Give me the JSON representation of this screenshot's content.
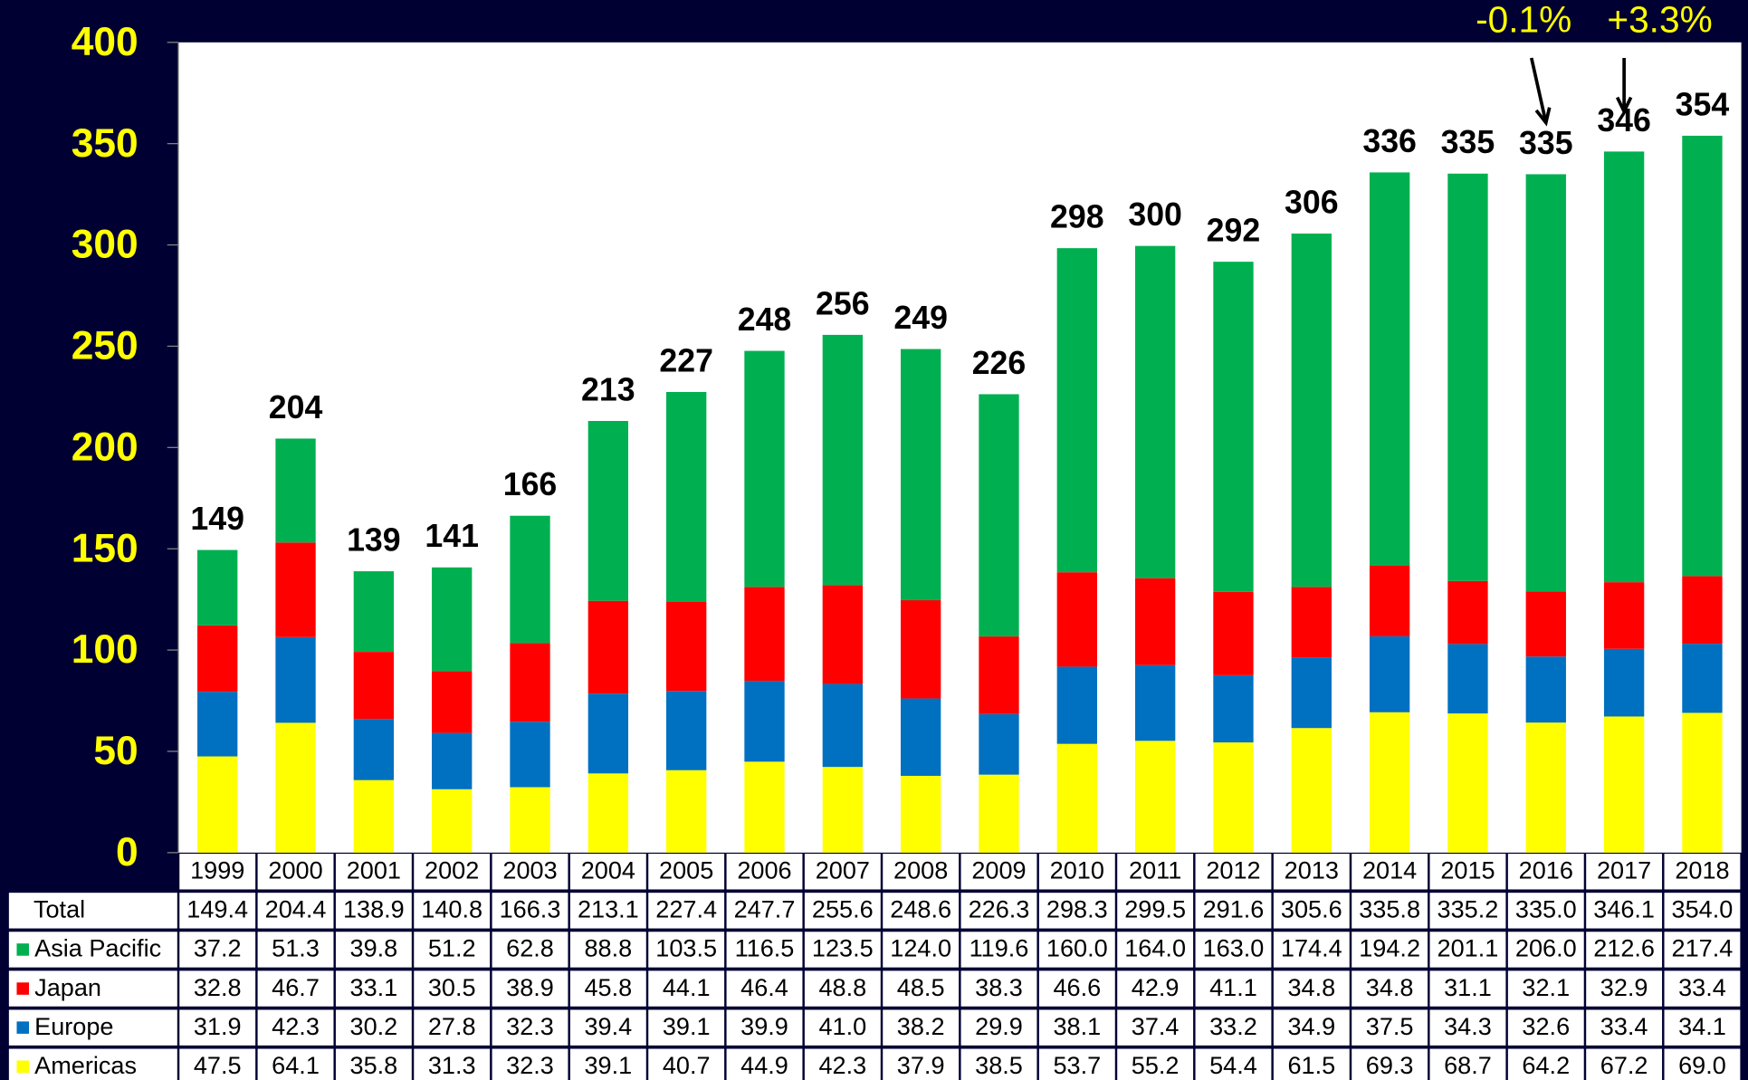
{
  "chart_data": {
    "type": "stacked-bar",
    "categories": [
      "1999",
      "2000",
      "2001",
      "2002",
      "2003",
      "2004",
      "2005",
      "2006",
      "2007",
      "2008",
      "2009",
      "2010",
      "2011",
      "2012",
      "2013",
      "2014",
      "2015",
      "2016",
      "2017",
      "2018"
    ],
    "series": [
      {
        "name": "Americas",
        "color": "#ffff00",
        "values": [
          47.5,
          64.1,
          35.8,
          31.3,
          32.3,
          39.1,
          40.7,
          44.9,
          42.3,
          37.9,
          38.5,
          53.7,
          55.2,
          54.4,
          61.5,
          69.3,
          68.7,
          64.2,
          67.2,
          69.0
        ],
        "value_labels": [
          "47.5",
          "64.1",
          "35.8",
          "31.3",
          "32.3",
          "39.1",
          "40.7",
          "44.9",
          "42.3",
          "37.9",
          "38.5",
          "53.7",
          "55.2",
          "54.4",
          "61.5",
          "69.3",
          "68.7",
          "64.2",
          "67.2",
          "69.0"
        ]
      },
      {
        "name": "Europe",
        "color": "#0070c0",
        "values": [
          31.9,
          42.3,
          30.2,
          27.8,
          32.3,
          39.4,
          39.1,
          39.9,
          41.0,
          38.2,
          29.9,
          38.1,
          37.4,
          33.2,
          34.9,
          37.5,
          34.3,
          32.6,
          33.4,
          34.1
        ],
        "value_labels": [
          "31.9",
          "42.3",
          "30.2",
          "27.8",
          "32.3",
          "39.4",
          "39.1",
          "39.9",
          "41.0",
          "38.2",
          "29.9",
          "38.1",
          "37.4",
          "33.2",
          "34.9",
          "37.5",
          "34.3",
          "32.6",
          "33.4",
          "34.1"
        ]
      },
      {
        "name": "Japan",
        "color": "#ff0000",
        "values": [
          32.8,
          46.7,
          33.1,
          30.5,
          38.9,
          45.8,
          44.1,
          46.4,
          48.8,
          48.5,
          38.3,
          46.6,
          42.9,
          41.1,
          34.8,
          34.8,
          31.1,
          32.1,
          32.9,
          33.4
        ],
        "value_labels": [
          "32.8",
          "46.7",
          "33.1",
          "30.5",
          "38.9",
          "45.8",
          "44.1",
          "46.4",
          "48.8",
          "48.5",
          "38.3",
          "46.6",
          "42.9",
          "41.1",
          "34.8",
          "34.8",
          "31.1",
          "32.1",
          "32.9",
          "33.4"
        ]
      },
      {
        "name": "Asia Pacific",
        "color": "#00b050",
        "values": [
          37.2,
          51.3,
          39.8,
          51.2,
          62.8,
          88.8,
          103.5,
          116.5,
          123.5,
          124.0,
          119.6,
          160.0,
          164.0,
          163.0,
          174.4,
          194.2,
          201.1,
          206.0,
          212.6,
          217.4
        ],
        "value_labels": [
          "37.2",
          "51.3",
          "39.8",
          "51.2",
          "62.8",
          "88.8",
          "103.5",
          "116.5",
          "123.5",
          "124.0",
          "119.6",
          "160.0",
          "164.0",
          "163.0",
          "174.4",
          "194.2",
          "201.1",
          "206.0",
          "212.6",
          "217.4"
        ]
      }
    ],
    "totals": {
      "name": "Total",
      "values": [
        149.4,
        204.4,
        138.9,
        140.8,
        166.3,
        213.1,
        227.4,
        247.7,
        255.6,
        248.6,
        226.3,
        298.3,
        299.5,
        291.6,
        305.6,
        335.8,
        335.2,
        335.0,
        346.1,
        354.0
      ],
      "value_labels": [
        "149.4",
        "204.4",
        "138.9",
        "140.8",
        "166.3",
        "213.1",
        "227.4",
        "247.7",
        "255.6",
        "248.6",
        "226.3",
        "298.3",
        "299.5",
        "291.6",
        "305.6",
        "335.8",
        "335.2",
        "335.0",
        "346.1",
        "354.0"
      ],
      "top_labels": [
        "149",
        "204",
        "139",
        "141",
        "166",
        "213",
        "227",
        "248",
        "256",
        "249",
        "226",
        "298",
        "300",
        "292",
        "306",
        "336",
        "335",
        "335",
        "346",
        "354"
      ]
    },
    "annotations": [
      {
        "text": "-0.1%",
        "category": "2016"
      },
      {
        "text": "+3.3%",
        "category": "2017"
      }
    ],
    "ylim": [
      0,
      400
    ],
    "yticks": [
      0,
      50,
      100,
      150,
      200,
      250,
      300,
      350,
      400
    ]
  }
}
